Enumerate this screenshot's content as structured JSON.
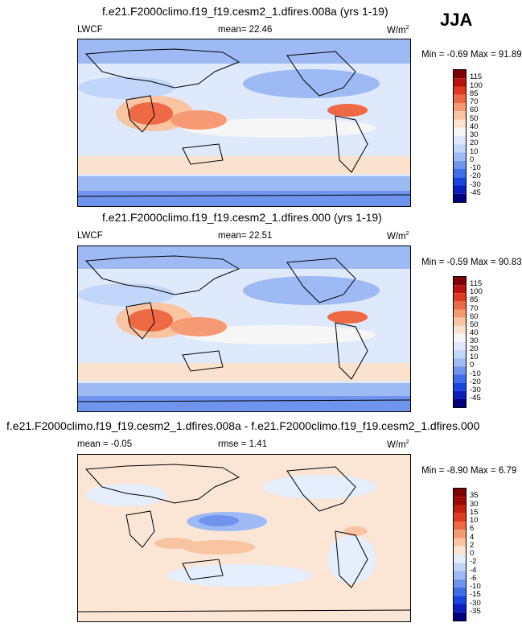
{
  "season": "JJA",
  "units_base": "W/m",
  "units_sup": "2",
  "panels": [
    {
      "title": "f.e21.F2000climo.f19_f19.cesm2_1.dfires.008a (yrs 1-19)",
      "left": "LWCF",
      "mid": "mean=  22.46",
      "minmax": "Min = -0.69 Max = 91.89"
    },
    {
      "title": "f.e21.F2000climo.f19_f19.cesm2_1.dfires.000 (yrs 1-19)",
      "left": "LWCF",
      "mid": "mean=  22.51",
      "minmax": "Min = -0.59 Max = 90.83"
    },
    {
      "title": "f.e21.F2000climo.f19_f19.cesm2_1.dfires.008a - f.e21.F2000climo.f19_f19.cesm2_1.dfires.000",
      "left": "mean =  -0.05",
      "mid": "rmse =   1.41",
      "minmax": "Min =  -8.90 Max =   6.79"
    }
  ],
  "chart_data": [
    {
      "type": "heatmap",
      "title": "f.e21.F2000climo.f19_f19.cesm2_1.dfires.008a (yrs 1-19)",
      "variable": "LWCF",
      "units": "W/m2",
      "mean": 22.46,
      "min": -0.69,
      "max": 91.89,
      "colorbar_levels": [
        -45,
        -30,
        -20,
        -10,
        0,
        10,
        20,
        30,
        40,
        50,
        60,
        70,
        85,
        100,
        115
      ],
      "colorbar_colors": [
        "#00007f",
        "#0a1fb8",
        "#1946e0",
        "#3f6fe8",
        "#6f94ee",
        "#9dbaf4",
        "#c2d6fa",
        "#dfe9fc",
        "#f6f6f6",
        "#fbe2cf",
        "#f9c4a2",
        "#f59a72",
        "#ee6a44",
        "#df3a1f",
        "#b5140c",
        "#7f0000"
      ]
    },
    {
      "type": "heatmap",
      "title": "f.e21.F2000climo.f19_f19.cesm2_1.dfires.000 (yrs 1-19)",
      "variable": "LWCF",
      "units": "W/m2",
      "mean": 22.51,
      "min": -0.59,
      "max": 90.83,
      "colorbar_levels": [
        -45,
        -30,
        -20,
        -10,
        0,
        10,
        20,
        30,
        40,
        50,
        60,
        70,
        85,
        100,
        115
      ],
      "colorbar_colors": [
        "#00007f",
        "#0a1fb8",
        "#1946e0",
        "#3f6fe8",
        "#6f94ee",
        "#9dbaf4",
        "#c2d6fa",
        "#dfe9fc",
        "#f6f6f6",
        "#fbe2cf",
        "#f9c4a2",
        "#f59a72",
        "#ee6a44",
        "#df3a1f",
        "#b5140c",
        "#7f0000"
      ]
    },
    {
      "type": "heatmap",
      "title": "f.e21.F2000climo.f19_f19.cesm2_1.dfires.008a - f.e21.F2000climo.f19_f19.cesm2_1.dfires.000",
      "units": "W/m2",
      "mean": -0.05,
      "rmse": 1.41,
      "min": -8.9,
      "max": 6.79,
      "colorbar_levels": [
        -35,
        -30,
        -15,
        -10,
        -6,
        -4,
        -2,
        0,
        2,
        4,
        6,
        10,
        15,
        30,
        35
      ],
      "colorbar_colors": [
        "#00007f",
        "#0a1fb8",
        "#1946e0",
        "#3f6fe8",
        "#6f94ee",
        "#9dbaf4",
        "#c2d6fa",
        "#e4eefc",
        "#fbe6d6",
        "#f9c4a2",
        "#f59a72",
        "#ee6a44",
        "#df3a1f",
        "#c2200f",
        "#9b0a06",
        "#7f0000"
      ]
    }
  ]
}
